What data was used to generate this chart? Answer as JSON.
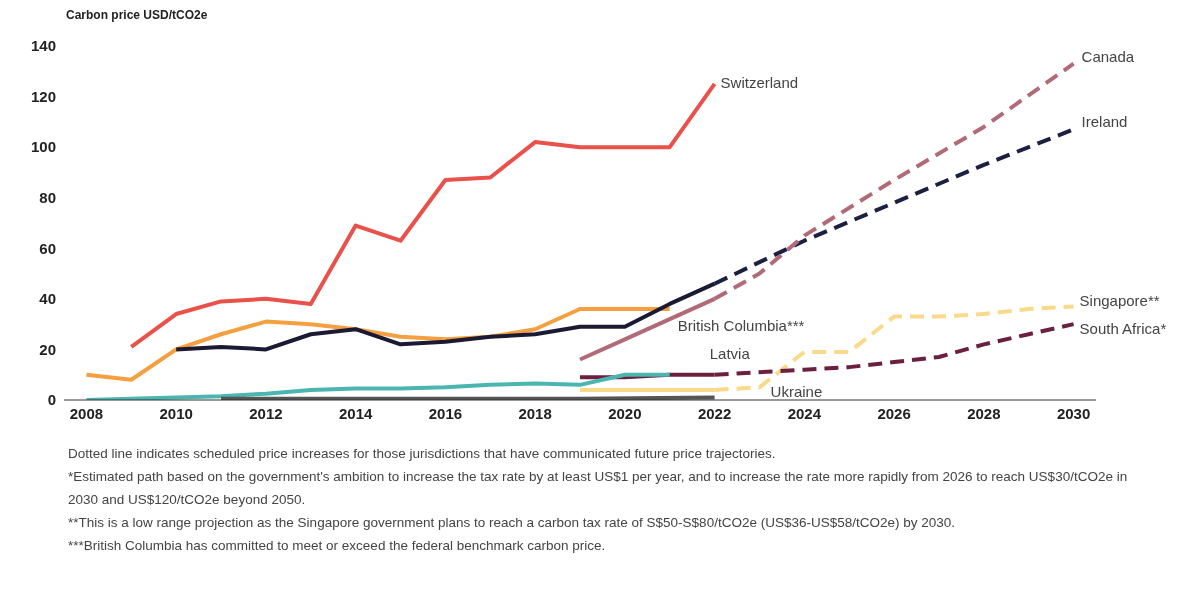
{
  "chart_data": {
    "type": "line",
    "ylabel": "Carbon price USD/tCO2e",
    "xlim": [
      2007.5,
      2030.5
    ],
    "xticks": [
      2008,
      2010,
      2012,
      2014,
      2016,
      2018,
      2020,
      2022,
      2024,
      2026,
      2028,
      2030
    ],
    "ylim": [
      0,
      140
    ],
    "yticks": [
      0,
      20,
      40,
      60,
      80,
      100,
      120,
      140
    ],
    "marker": "none",
    "series": [
      {
        "name": "Switzerland",
        "color": "#e8524a",
        "line_style": "solid",
        "x": [
          2009,
          2010,
          2011,
          2012,
          2013,
          2014,
          2015,
          2016,
          2017,
          2018,
          2019,
          2020,
          2021,
          2022
        ],
        "values": [
          21,
          34,
          39,
          40,
          38,
          69,
          63,
          87,
          88,
          102,
          100,
          100,
          100,
          125
        ]
      },
      {
        "name": "British Columbia***",
        "color": "#f4a040",
        "line_style": "solid",
        "x": [
          2008,
          2009,
          2010,
          2011,
          2012,
          2013,
          2014,
          2015,
          2016,
          2017,
          2018,
          2019,
          2020,
          2021
        ],
        "values": [
          10,
          8,
          20,
          26,
          31,
          30,
          28,
          25,
          24,
          25,
          28,
          36,
          36,
          36
        ]
      },
      {
        "color": "#1c1a33",
        "line_style": "solid",
        "x": [
          2010,
          2011,
          2012,
          2013,
          2014,
          2015,
          2016,
          2017,
          2018,
          2019,
          2020,
          2021,
          2022
        ],
        "values": [
          20,
          21,
          20,
          26,
          28,
          22,
          23,
          25,
          26,
          29,
          29,
          38,
          46
        ]
      },
      {
        "name": "Ireland",
        "color": "#1c2040",
        "line_style": "dashed",
        "x": [
          2022,
          2024,
          2026,
          2028,
          2030
        ],
        "values": [
          46,
          63,
          78,
          93,
          107
        ]
      },
      {
        "color": "#b06a78",
        "line_style": "solid",
        "x": [
          2019,
          2020,
          2021,
          2022
        ],
        "values": [
          16,
          24,
          32,
          40
        ]
      },
      {
        "name": "Canada",
        "color": "#b06a78",
        "line_style": "dashed",
        "x": [
          2022,
          2023,
          2024,
          2026,
          2028,
          2030
        ],
        "values": [
          40,
          50,
          65,
          87,
          108,
          133
        ]
      },
      {
        "color": "#f9d98a",
        "line_style": "solid",
        "x": [
          2019,
          2020,
          2021,
          2022
        ],
        "values": [
          4,
          4,
          4,
          4
        ]
      },
      {
        "name": "Singapore**",
        "color": "#f9d98a",
        "line_style": "dashed",
        "x": [
          2022,
          2023,
          2024,
          2025,
          2026,
          2027,
          2028,
          2029,
          2030
        ],
        "values": [
          4,
          5,
          19,
          19,
          33,
          33,
          34,
          36,
          37
        ]
      },
      {
        "color": "#6b2040",
        "line_style": "solid",
        "x": [
          2019,
          2020,
          2021,
          2022
        ],
        "values": [
          9,
          9,
          10,
          10
        ]
      },
      {
        "name": "South Africa*",
        "color": "#6b2040",
        "line_style": "dashed",
        "x": [
          2022,
          2024,
          2025,
          2026,
          2027,
          2028,
          2029,
          2030
        ],
        "values": [
          10,
          12,
          13,
          15,
          17,
          22,
          26,
          30
        ]
      },
      {
        "name": "Latvia",
        "color": "#4bb5b0",
        "line_style": "solid",
        "x": [
          2008,
          2009,
          2010,
          2011,
          2012,
          2013,
          2014,
          2015,
          2016,
          2017,
          2018,
          2019,
          2020,
          2021
        ],
        "values": [
          0,
          0.5,
          1,
          1.5,
          2.5,
          4,
          4.5,
          4.5,
          5,
          6,
          6.5,
          6,
          10,
          10
        ]
      },
      {
        "name": "Ukraine",
        "color": "#555555",
        "line_style": "solid",
        "x": [
          2011,
          2019,
          2022
        ],
        "values": [
          0.5,
          0.5,
          1
        ]
      }
    ],
    "annotations": [
      "Dotted line indicates scheduled price increases for those jurisdictions that have communicated future price trajectories.",
      "*Estimated path based on the government's ambition to increase the tax rate by at least US$1 per year, and to increase the rate more rapidly from 2026 to reach US$30/tCO2e in 2030 and US$120/tCO2e beyond 2050.",
      "**This is a low range projection as the Singapore government plans to reach a carbon tax rate of S$50-S$80/tCO2e (US$36-US$58/tCO2e) by 2030.",
      "***British Columbia has committed to meet or exceed the federal benchmark carbon price."
    ]
  }
}
